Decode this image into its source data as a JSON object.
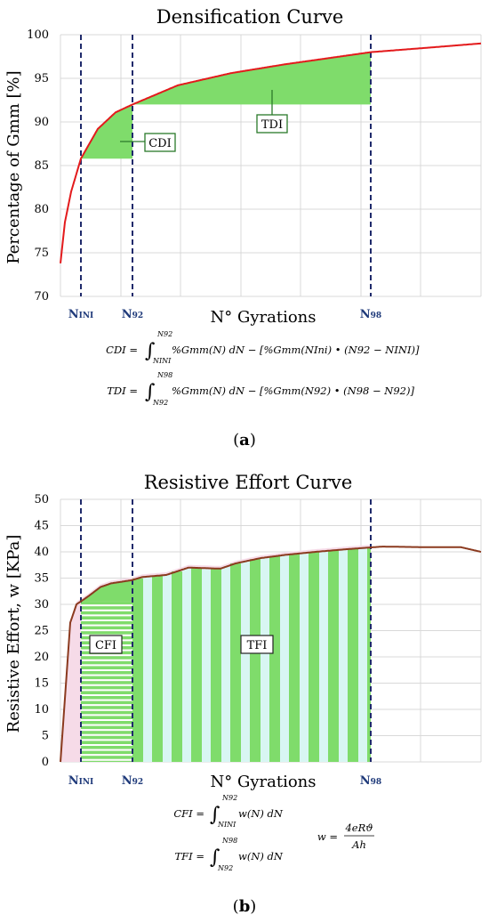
{
  "chart_data": [
    {
      "type": "line",
      "title": "Densification Curve",
      "xlabel": "N° Gyrations",
      "ylabel": "Percentage of Gmm [%]",
      "ylim": [
        70,
        100
      ],
      "yticks": [
        "70",
        "75",
        "80",
        "85",
        "90",
        "95",
        "100"
      ],
      "grid": true,
      "markers": [
        {
          "main": "N",
          "sub": "INI"
        },
        {
          "main": "N",
          "sub": "92"
        },
        {
          "main": "N",
          "sub": "98"
        }
      ],
      "regions": [
        {
          "label": "CDI",
          "color": "#7fdc6b"
        },
        {
          "label": "TDI",
          "color": "#7fdc6b"
        }
      ],
      "series": [
        {
          "color": "#e31a1c"
        }
      ],
      "equations": [
        {
          "lhs": "CDI",
          "upper": "N92",
          "lower": "NINI",
          "body": "%Gmm(N) dN − [%Gmm(NIni) • (N92 − NINI)]"
        },
        {
          "lhs": "TDI",
          "upper": "N98",
          "lower": "N92",
          "body": "%Gmm(N) dN − [%Gmm(N92) • (N98 − N92)]"
        }
      ],
      "panel_label": "a"
    },
    {
      "type": "line",
      "title": "Resistive Effort Curve",
      "xlabel": "N° Gyrations",
      "ylabel": "Resistive Effort, w [KPa]",
      "ylim": [
        0,
        50
      ],
      "yticks": [
        "0",
        "5",
        "10",
        "15",
        "20",
        "25",
        "30",
        "35",
        "40",
        "45",
        "50"
      ],
      "grid": true,
      "markers": [
        {
          "main": "N",
          "sub": "INI"
        },
        {
          "main": "N",
          "sub": "92"
        },
        {
          "main": "N",
          "sub": "98"
        }
      ],
      "regions": [
        {
          "label": "CFI",
          "color": "#7fdc6b"
        },
        {
          "label": "TFI",
          "color": "#7fdc6b"
        }
      ],
      "series": [
        {
          "color": "#8b3a1f",
          "y": [
            0,
            26.5,
            30,
            31.5,
            33.3,
            34,
            34.6,
            35.2,
            35.6,
            37,
            36.8,
            37.8,
            38.8,
            39.4,
            40,
            40.5,
            41,
            40.9,
            40.9,
            40
          ]
        }
      ],
      "equations": [
        {
          "lhs": "CFI",
          "upper": "N92",
          "lower": "NINI",
          "body": "w(N) dN"
        },
        {
          "lhs": "TFI",
          "upper": "N98",
          "lower": "N92",
          "body": "w(N) dN"
        },
        {
          "lhs": "w",
          "numerator": "4eRϑ",
          "denominator": "Ah"
        }
      ],
      "panel_label": "b"
    }
  ]
}
